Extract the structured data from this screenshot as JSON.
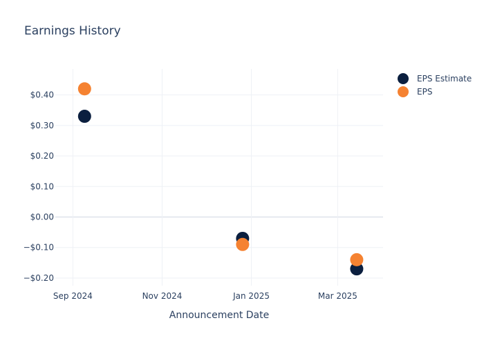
{
  "chart_data": {
    "type": "scatter",
    "title": "Earnings History",
    "xlabel": "Announcement Date",
    "ylabel": "",
    "x_ticks": [
      "2024-09-01",
      "2024-11-01",
      "2025-01-01",
      "2025-03-01"
    ],
    "x_tick_labels": [
      "Sep 2024",
      "Nov 2024",
      "Jan 2025",
      "Mar 2025"
    ],
    "xlim": [
      "2024-08-20",
      "2025-04-01"
    ],
    "y_ticks": [
      -0.2,
      -0.1,
      0,
      0.1,
      0.2,
      0.3,
      0.4
    ],
    "y_tick_labels": [
      "−$0.20",
      "−$0.10",
      "$0.00",
      "$0.10",
      "$0.20",
      "$0.30",
      "$0.40"
    ],
    "ylim": [
      -0.225,
      0.485
    ],
    "grid": true,
    "legend_position": "top-right",
    "series": [
      {
        "name": "EPS Estimate",
        "color": "#0b1f3f",
        "points": [
          {
            "x": "2024-09-09",
            "y": 0.33
          },
          {
            "x": "2024-12-26",
            "y": -0.07
          },
          {
            "x": "2025-03-14",
            "y": -0.17
          }
        ]
      },
      {
        "name": "EPS",
        "color": "#f58231",
        "points": [
          {
            "x": "2024-09-09",
            "y": 0.42
          },
          {
            "x": "2024-12-26",
            "y": -0.09
          },
          {
            "x": "2025-03-14",
            "y": -0.14
          }
        ]
      }
    ]
  }
}
